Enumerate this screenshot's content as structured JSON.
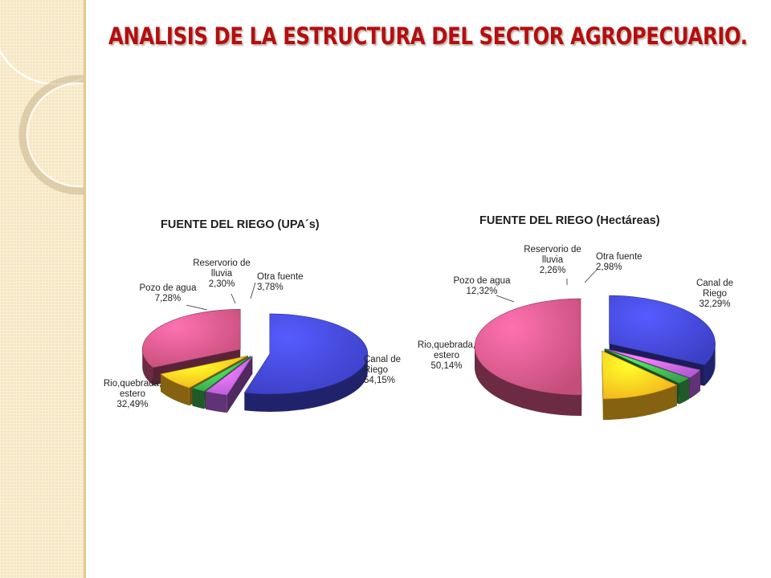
{
  "slide": {
    "title": "ANALISIS  DE LA ESTRUCTURA DEL SECTOR AGROPECUARIO.",
    "accent_color": "#b30f10",
    "side_panel_color": "#f6e7c1"
  },
  "chart_data": [
    {
      "type": "pie",
      "title": "FUENTE DEL RIEGO (UPA´s)",
      "three_d": true,
      "exploded": true,
      "slices": [
        {
          "label_lines": [
            "Canal de",
            "Riego"
          ],
          "value_label": "54,15%",
          "value": 54.15,
          "color": "#3b3fc4"
        },
        {
          "label_lines": [
            "Otra fuente"
          ],
          "value_label": "3,78%",
          "value": 3.78,
          "color": "#b25ad6"
        },
        {
          "label_lines": [
            "Reservorio de",
            "lluvia"
          ],
          "value_label": "2,30%",
          "value": 2.3,
          "color": "#3aa34a"
        },
        {
          "label_lines": [
            "Pozo de agua"
          ],
          "value_label": "7,28%",
          "value": 7.28,
          "color": "#f2b21c"
        },
        {
          "label_lines": [
            "Rio,quebrada,",
            "estero"
          ],
          "value_label": "32,49%",
          "value": 32.49,
          "color": "#c44e7a"
        }
      ]
    },
    {
      "type": "pie",
      "title": "FUENTE DEL RIEGO (Hectáreas)",
      "three_d": true,
      "exploded": true,
      "slices": [
        {
          "label_lines": [
            "Canal de",
            "Riego"
          ],
          "value_label": "32,29%",
          "value": 32.29,
          "color": "#3b3fc4"
        },
        {
          "label_lines": [
            "Otra fuente"
          ],
          "value_label": "2,98%",
          "value": 2.98,
          "color": "#b25ad6"
        },
        {
          "label_lines": [
            "Reservorio de",
            "lluvia"
          ],
          "value_label": "2,26%",
          "value": 2.26,
          "color": "#3aa34a"
        },
        {
          "label_lines": [
            "Pozo de agua"
          ],
          "value_label": "12,32%",
          "value": 12.32,
          "color": "#f2b21c"
        },
        {
          "label_lines": [
            "Rio,quebrada,",
            "estero"
          ],
          "value_label": "50,14%",
          "value": 50.14,
          "color": "#c44e7a"
        }
      ]
    }
  ]
}
